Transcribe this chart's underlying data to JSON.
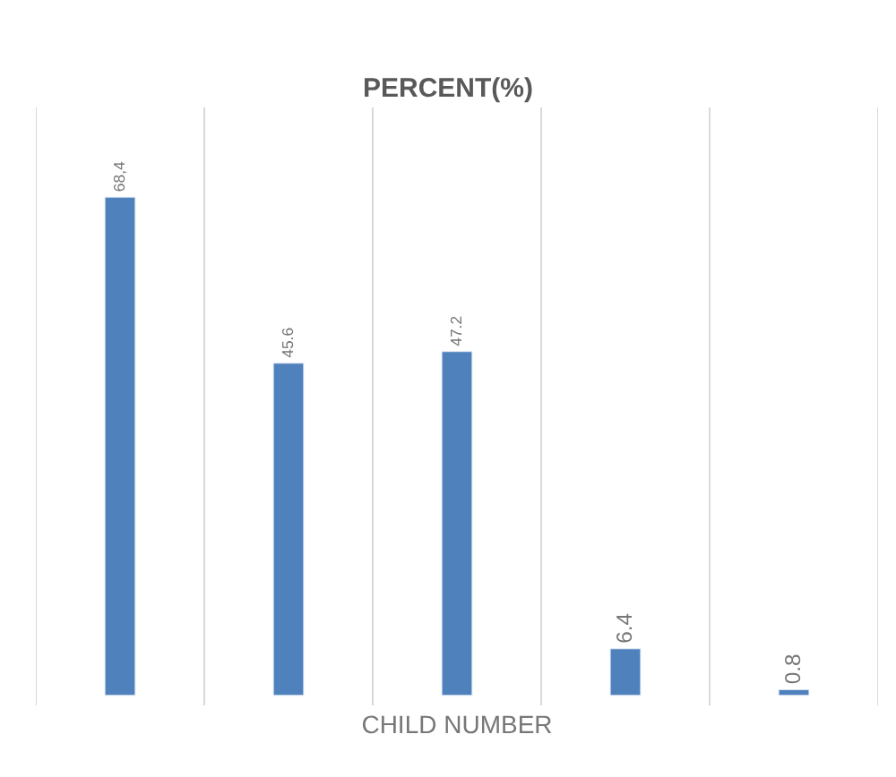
{
  "chart_data": {
    "type": "bar",
    "title": "PERCENT(%)",
    "xlabel": "CHILD NUMBER",
    "categories": [
      null,
      null,
      null,
      null,
      null
    ],
    "values": [
      68.4,
      45.6,
      47.2,
      6.4,
      0.8
    ],
    "value_labels": [
      "68,4",
      "45.6",
      "47.2",
      "6.4",
      "0.8"
    ],
    "color": "#4f81bd",
    "grid": "x"
  }
}
